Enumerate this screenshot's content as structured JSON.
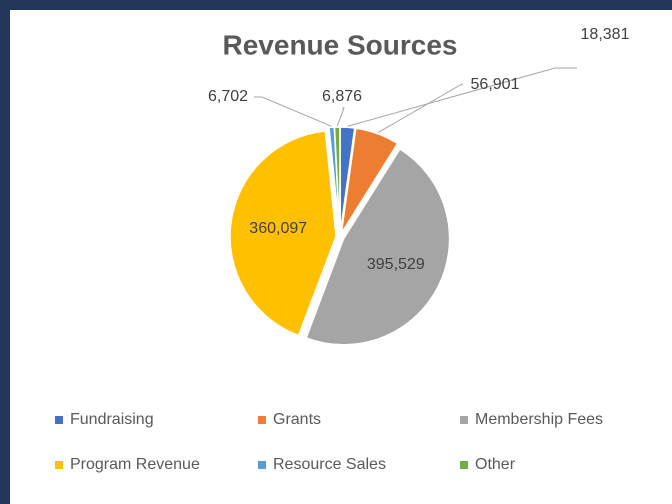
{
  "chart_data": {
    "type": "pie",
    "title": "Revenue Sources",
    "categories": [
      "Fundraising",
      "Grants",
      "Membership Fees",
      "Program Revenue",
      "Resource Sales",
      "Other"
    ],
    "values": [
      18381,
      56901,
      395529,
      360097,
      6702,
      6876
    ],
    "value_labels": [
      "18,381",
      "56,901",
      "395,529",
      "360,097",
      "6,702",
      "6,876"
    ],
    "colors": [
      "#4472c4",
      "#ed7d31",
      "#a5a5a5",
      "#ffc000",
      "#5b9bd5",
      "#70ad47"
    ],
    "legend": "bottom"
  }
}
